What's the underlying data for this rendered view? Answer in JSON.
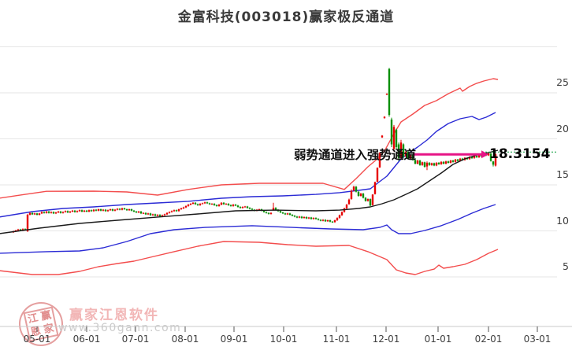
{
  "title": "金富科技(003018)赢家极反通道",
  "annotation": {
    "text": "弱势通道进入强势通道",
    "price_label": "18.3154"
  },
  "watermark": {
    "brand": "赢家江恩软件",
    "url": "www.360gann.com",
    "seal": [
      "江",
      "赢",
      "恩",
      "家"
    ]
  },
  "colors": {
    "up_candle": "#e60000",
    "down_candle": "#0a8f0a",
    "channel_red": "#f34d4d",
    "channel_blue": "#2b2bd5",
    "middle_line": "#1a1a1a",
    "grid": "#e6e6e6",
    "axis_line": "#c9c9c9",
    "tick": "#555555",
    "label": "#3f3f3f",
    "arrow": "#e61486",
    "dotted": "#009933"
  },
  "chart_data": {
    "type": "candlestick",
    "title": "金富科技(003018)赢家极反通道",
    "x_axis": {
      "labels": [
        "05-01",
        "06-01",
        "07-01",
        "08-01",
        "09-01",
        "10-01",
        "11-01",
        "12-01",
        "01-01",
        "02-01",
        "03-01"
      ]
    },
    "y_axis": {
      "ticks": [
        25,
        20,
        15,
        10,
        5
      ],
      "grid_values": [
        30,
        25,
        20,
        15,
        10,
        5
      ],
      "range": [
        2.5,
        32
      ]
    },
    "current_price": 18.3154,
    "marker": {
      "level": 18.3154,
      "text": "弱势通道进入强势通道"
    },
    "candles": [
      [
        9.95
      ],
      [
        10.05
      ],
      [
        10.15
      ],
      [
        10.05
      ],
      [
        10.2
      ],
      [
        10.1
      ],
      [
        11.75,
        9.95,
        11.85,
        9.9
      ],
      [
        11.95
      ],
      [
        11.8
      ],
      [
        11.9
      ],
      [
        11.75
      ],
      [
        11.9
      ],
      [
        12.05
      ],
      [
        11.95
      ],
      [
        12.1
      ],
      [
        11.95
      ],
      [
        12.05
      ],
      [
        11.9
      ],
      [
        12.0
      ],
      [
        12.1
      ],
      [
        11.95
      ],
      [
        12.05
      ],
      [
        12.15
      ],
      [
        12.0
      ],
      [
        12.1
      ],
      [
        12.2
      ],
      [
        12.05
      ],
      [
        12.15
      ],
      [
        12.25
      ],
      [
        12.1
      ],
      [
        12.2
      ],
      [
        12.1
      ],
      [
        12.25
      ],
      [
        12.15
      ],
      [
        12.3
      ],
      [
        12.2
      ],
      [
        12.35
      ],
      [
        12.2
      ],
      [
        12.3
      ],
      [
        12.15
      ],
      [
        12.25
      ],
      [
        12.35
      ],
      [
        12.2
      ],
      [
        12.3
      ],
      [
        12.4
      ],
      [
        12.3
      ],
      [
        12.45
      ],
      [
        12.35
      ],
      [
        12.25
      ],
      [
        12.35
      ],
      [
        12.2
      ],
      [
        12.1
      ],
      [
        12.0
      ],
      [
        12.1
      ],
      [
        11.9
      ],
      [
        11.95
      ],
      [
        11.8
      ],
      [
        11.9
      ],
      [
        11.7
      ],
      [
        11.8
      ],
      [
        11.65
      ],
      [
        11.75
      ],
      [
        11.6
      ],
      [
        11.7
      ],
      [
        11.8
      ],
      [
        11.95
      ],
      [
        12.05
      ],
      [
        12.15
      ],
      [
        12.25
      ],
      [
        12.15
      ],
      [
        12.35
      ],
      [
        12.45
      ],
      [
        12.55
      ],
      [
        12.7
      ],
      [
        12.85
      ],
      [
        12.95
      ],
      [
        13.05
      ],
      [
        12.9
      ],
      [
        12.8
      ],
      [
        12.95
      ],
      [
        13.0
      ],
      [
        13.1
      ],
      [
        13.0
      ],
      [
        12.9
      ],
      [
        12.95
      ],
      [
        12.8
      ],
      [
        12.7
      ],
      [
        12.85
      ],
      [
        13.05
      ],
      [
        12.9
      ],
      [
        12.95
      ],
      [
        12.8
      ],
      [
        12.7
      ],
      [
        12.85
      ],
      [
        12.75
      ],
      [
        12.6
      ],
      [
        12.5
      ],
      [
        12.6
      ],
      [
        12.65
      ],
      [
        12.5
      ],
      [
        12.4
      ],
      [
        12.3
      ],
      [
        12.2
      ],
      [
        12.3
      ],
      [
        12.35
      ],
      [
        12.2
      ],
      [
        12.05
      ],
      [
        11.95
      ],
      [
        11.85
      ],
      [
        11.95
      ],
      [
        12.5,
        12.3,
        13.05,
        12.2
      ],
      [
        12.3
      ],
      [
        12.15
      ],
      [
        12.0
      ],
      [
        11.9
      ],
      [
        11.8
      ],
      [
        11.9
      ],
      [
        11.75
      ],
      [
        11.65
      ],
      [
        11.55
      ],
      [
        11.45
      ],
      [
        11.55
      ],
      [
        11.4
      ],
      [
        11.5
      ],
      [
        11.35
      ],
      [
        11.45
      ],
      [
        11.3
      ],
      [
        11.4
      ],
      [
        11.3
      ],
      [
        11.2
      ],
      [
        11.1
      ],
      [
        11.2
      ],
      [
        11.05
      ],
      [
        11.15
      ],
      [
        11.0
      ],
      [
        10.95
      ],
      [
        11.15
      ],
      [
        11.4
      ],
      [
        11.7
      ],
      [
        12.05
      ],
      [
        12.45
      ],
      [
        12.85
      ],
      [
        13.4,
        12.9,
        13.5,
        12.85
      ],
      [
        14.35,
        13.45,
        14.5,
        13.4
      ],
      [
        14.8,
        14.4,
        14.9,
        14.3
      ],
      [
        14.25
      ],
      [
        13.8
      ],
      [
        14.05
      ],
      [
        13.6
      ],
      [
        13.25
      ],
      [
        13.45
      ],
      [
        12.75
      ],
      [
        13.95,
        12.8,
        14.0,
        12.75
      ],
      [
        15.3,
        14.0,
        15.35,
        13.95
      ],
      [
        16.85,
        15.35,
        16.9,
        15.3
      ],
      [
        18.5,
        16.9,
        18.55,
        16.85
      ],
      [
        20.35,
        20.15,
        20.4,
        20.1
      ],
      [
        22.4,
        22.25,
        22.45,
        22.2
      ],
      [
        24.9,
        24.8,
        24.95,
        24.75
      ],
      [
        22.6,
        27.6,
        27.7,
        22.4
      ],
      [
        19.4,
        22.1,
        22.3,
        19.1
      ],
      [
        21.3,
        18.9,
        21.5,
        18.6
      ],
      [
        19.1,
        21.0,
        21.1,
        18.8
      ],
      [
        17.9,
        19.4,
        19.6,
        17.6
      ],
      [
        19.6,
        17.95,
        19.9,
        17.8
      ],
      [
        18.1,
        19.4,
        19.5,
        17.9
      ],
      [
        18.6
      ],
      [
        17.85
      ],
      [
        18.25
      ],
      [
        17.7
      ],
      [
        17.3
      ],
      [
        17.65
      ],
      [
        17.15
      ],
      [
        17.45
      ],
      [
        16.95
      ],
      [
        17.4,
        17.0,
        17.55,
        16.6
      ],
      [
        17.15
      ],
      [
        17.35
      ],
      [
        17.1
      ],
      [
        17.4
      ],
      [
        17.25
      ],
      [
        17.5
      ],
      [
        17.3
      ],
      [
        17.55
      ],
      [
        17.4
      ],
      [
        17.65
      ],
      [
        17.5
      ],
      [
        17.75
      ],
      [
        17.6
      ],
      [
        17.85
      ],
      [
        17.7
      ],
      [
        17.95
      ],
      [
        17.8
      ],
      [
        18.05
      ],
      [
        17.9
      ],
      [
        18.15
      ],
      [
        18.0
      ],
      [
        18.25
      ],
      [
        18.1
      ],
      [
        18.3
      ],
      [
        18.2
      ],
      [
        18.4
      ],
      [
        17.6
      ],
      [
        17.2,
        17.55,
        17.6,
        17.0
      ],
      [
        18.32,
        17.1,
        18.45,
        17.0
      ]
    ],
    "channel_lines": {
      "upper_red": [
        [
          -6,
          13.55
        ],
        [
          3,
          13.9
        ],
        [
          14,
          14.3
        ],
        [
          34,
          14.32
        ],
        [
          48,
          14.23
        ],
        [
          61,
          13.89
        ],
        [
          74,
          14.5
        ],
        [
          88,
          15.0
        ],
        [
          104,
          15.17
        ],
        [
          131,
          15.17
        ],
        [
          140,
          14.5
        ],
        [
          145,
          15.68
        ],
        [
          150,
          16.97
        ],
        [
          154,
          17.82
        ],
        [
          157,
          18.68
        ],
        [
          161,
          20.56
        ],
        [
          164,
          21.84
        ],
        [
          169,
          22.69
        ],
        [
          174,
          23.63
        ],
        [
          179,
          24.15
        ],
        [
          184,
          24.91
        ],
        [
          189,
          25.51
        ],
        [
          190,
          25.17
        ],
        [
          193,
          25.68
        ],
        [
          196,
          26.03
        ],
        [
          199,
          26.28
        ],
        [
          203,
          26.54
        ],
        [
          205,
          26.45
        ]
      ],
      "upper_blue": [
        [
          -6,
          11.5
        ],
        [
          8,
          12.09
        ],
        [
          21,
          12.44
        ],
        [
          34,
          12.61
        ],
        [
          48,
          12.86
        ],
        [
          61,
          13.03
        ],
        [
          74,
          13.21
        ],
        [
          88,
          13.55
        ],
        [
          101,
          13.72
        ],
        [
          114,
          13.8
        ],
        [
          128,
          13.97
        ],
        [
          138,
          14.15
        ],
        [
          146,
          14.4
        ],
        [
          151,
          14.57
        ],
        [
          154,
          15.17
        ],
        [
          158,
          15.94
        ],
        [
          161,
          16.88
        ],
        [
          164,
          17.82
        ],
        [
          168,
          18.59
        ],
        [
          171,
          19.1
        ],
        [
          175,
          19.87
        ],
        [
          179,
          20.81
        ],
        [
          184,
          21.67
        ],
        [
          189,
          22.18
        ],
        [
          194,
          22.44
        ],
        [
          197,
          22.09
        ],
        [
          200,
          22.35
        ],
        [
          204,
          22.86
        ]
      ],
      "middle_black": [
        [
          -6,
          9.7
        ],
        [
          11,
          10.3
        ],
        [
          28,
          10.81
        ],
        [
          44,
          11.15
        ],
        [
          61,
          11.5
        ],
        [
          78,
          11.84
        ],
        [
          94,
          12.18
        ],
        [
          111,
          12.26
        ],
        [
          128,
          12.18
        ],
        [
          138,
          12.26
        ],
        [
          146,
          12.44
        ],
        [
          151,
          12.61
        ],
        [
          156,
          12.95
        ],
        [
          161,
          13.38
        ],
        [
          166,
          13.97
        ],
        [
          171,
          14.57
        ],
        [
          176,
          15.43
        ],
        [
          181,
          16.28
        ],
        [
          186,
          17.22
        ],
        [
          191,
          17.82
        ],
        [
          196,
          18.25
        ],
        [
          201,
          18.5
        ],
        [
          205,
          18.76
        ]
      ],
      "lower_blue": [
        [
          -6,
          7.56
        ],
        [
          14,
          7.74
        ],
        [
          28,
          7.82
        ],
        [
          38,
          8.16
        ],
        [
          48,
          8.85
        ],
        [
          58,
          9.7
        ],
        [
          68,
          10.13
        ],
        [
          81,
          10.38
        ],
        [
          101,
          10.56
        ],
        [
          118,
          10.38
        ],
        [
          134,
          10.21
        ],
        [
          148,
          10.13
        ],
        [
          155,
          10.38
        ],
        [
          158,
          10.64
        ],
        [
          160,
          10.13
        ],
        [
          163,
          9.7
        ],
        [
          168,
          9.7
        ],
        [
          174,
          10.04
        ],
        [
          181,
          10.56
        ],
        [
          188,
          11.24
        ],
        [
          194,
          11.92
        ],
        [
          199,
          12.44
        ],
        [
          204,
          12.86
        ]
      ],
      "lower_red": [
        [
          -6,
          5.68
        ],
        [
          8,
          5.26
        ],
        [
          19,
          5.26
        ],
        [
          28,
          5.6
        ],
        [
          36,
          6.11
        ],
        [
          44,
          6.45
        ],
        [
          51,
          6.71
        ],
        [
          58,
          7.14
        ],
        [
          68,
          7.74
        ],
        [
          78,
          8.33
        ],
        [
          89,
          8.85
        ],
        [
          104,
          8.76
        ],
        [
          116,
          8.5
        ],
        [
          128,
          8.33
        ],
        [
          142,
          8.42
        ],
        [
          150,
          7.74
        ],
        [
          158,
          6.88
        ],
        [
          162,
          5.77
        ],
        [
          166,
          5.43
        ],
        [
          170,
          5.26
        ],
        [
          174,
          5.6
        ],
        [
          178,
          5.85
        ],
        [
          180,
          6.28
        ],
        [
          182,
          5.94
        ],
        [
          186,
          6.11
        ],
        [
          191,
          6.37
        ],
        [
          196,
          6.88
        ],
        [
          201,
          7.56
        ],
        [
          205,
          7.99
        ]
      ]
    }
  }
}
